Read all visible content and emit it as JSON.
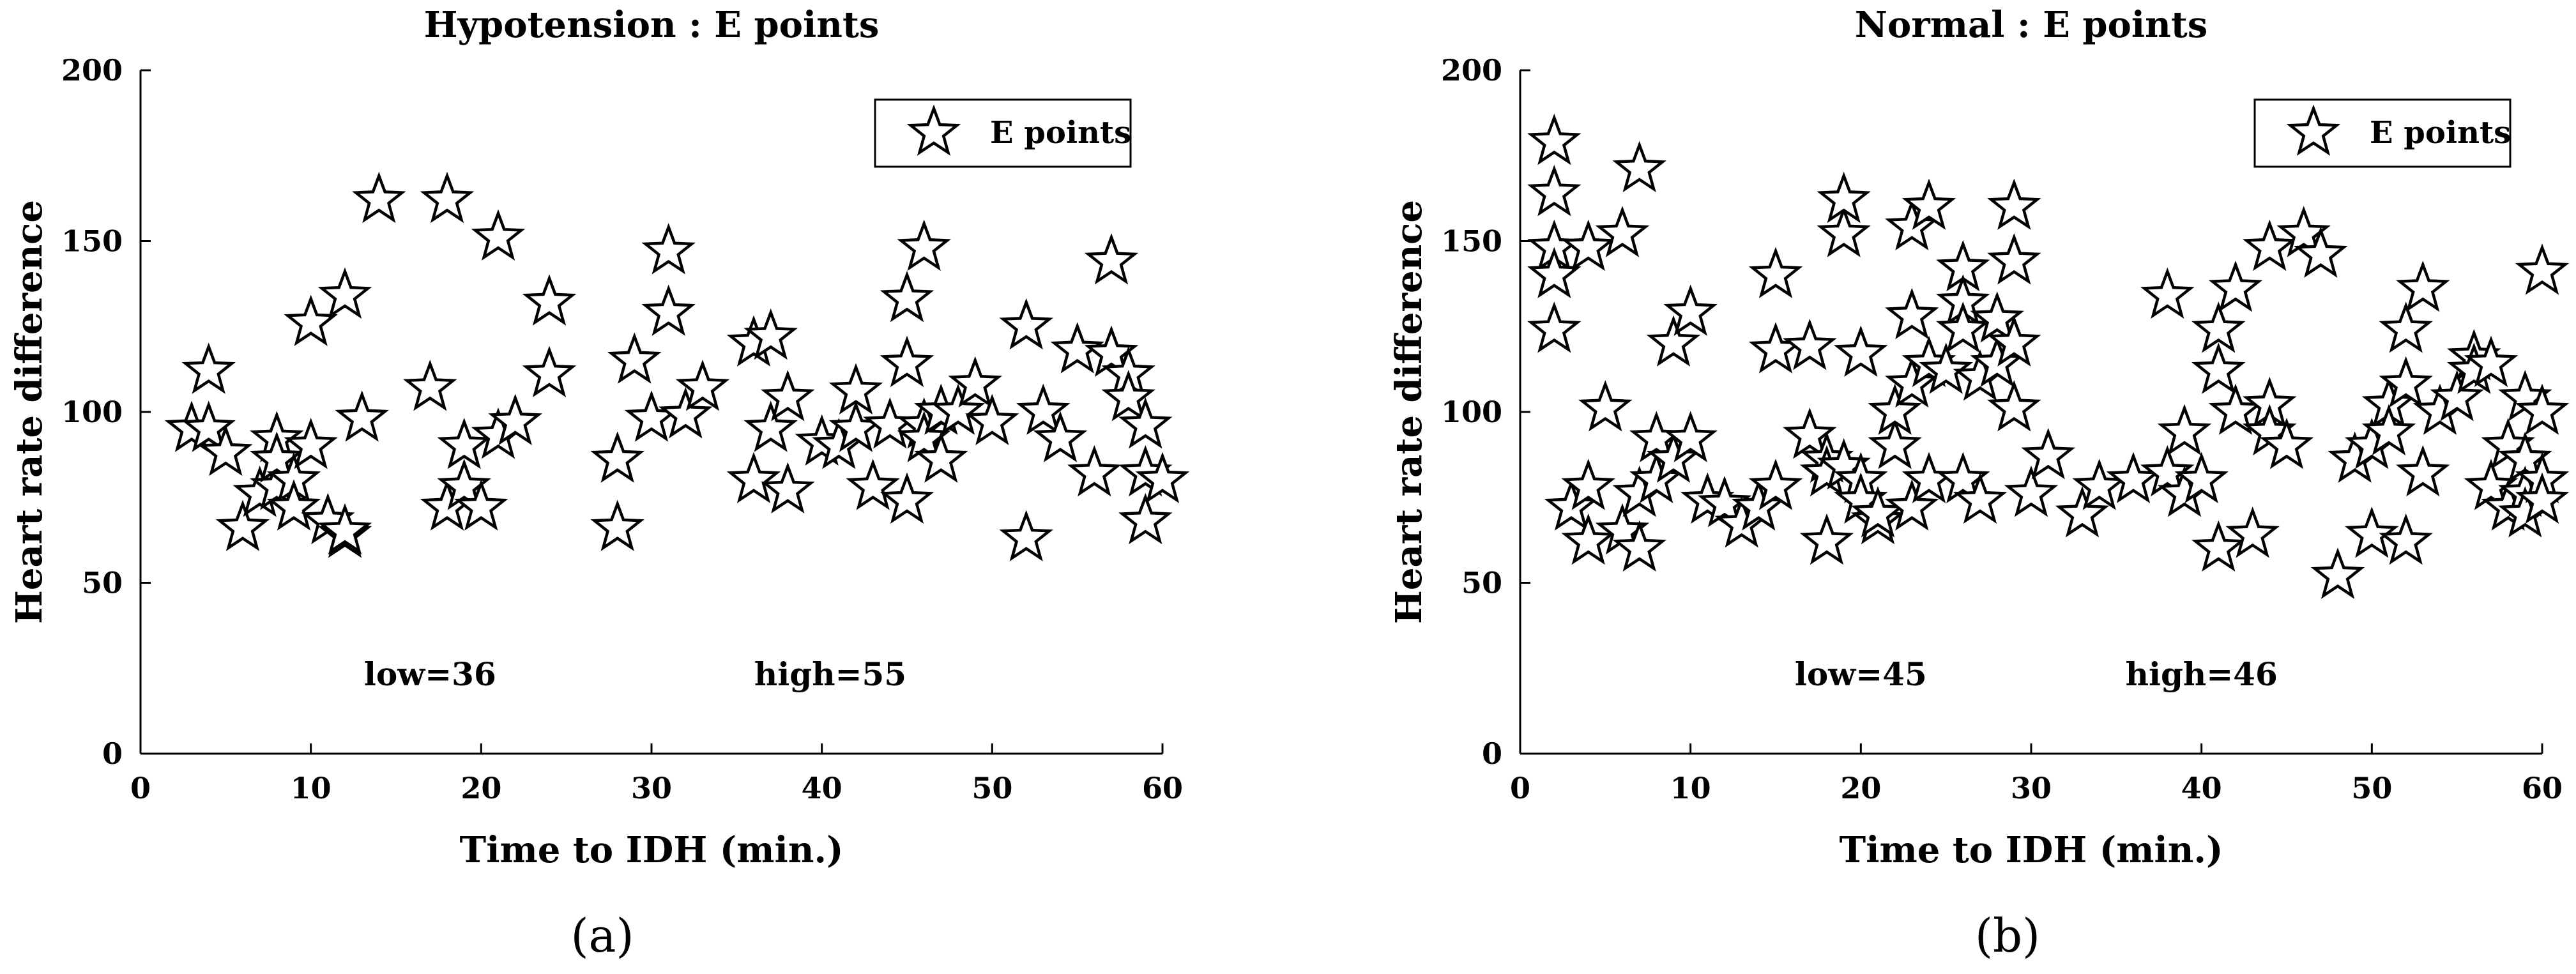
{
  "chart_data": [
    {
      "type": "scatter",
      "title": "Hypotension : E points",
      "xlabel": "Time to IDH (min.)",
      "ylabel": "Heart rate difference",
      "xlim": [
        0,
        60
      ],
      "ylim": [
        0,
        200
      ],
      "xticks": [
        "0",
        "10",
        "20",
        "30",
        "40",
        "50",
        "60"
      ],
      "yticks": [
        "0",
        "50",
        "100",
        "150",
        "200"
      ],
      "grid": false,
      "legend_position": "top-right",
      "marker": "open-star",
      "caption": "(a)",
      "annotations": [
        {
          "text": "low=36",
          "x": 17,
          "y": 20
        },
        {
          "text": "high=55",
          "x": 40.5,
          "y": 20
        }
      ],
      "series": [
        {
          "name": "E points",
          "points": [
            [
              3,
              95
            ],
            [
              4,
              112
            ],
            [
              4,
              95
            ],
            [
              5,
              88
            ],
            [
              6,
              66
            ],
            [
              7,
              76
            ],
            [
              8,
              92
            ],
            [
              8,
              78
            ],
            [
              8,
              86
            ],
            [
              9,
              80
            ],
            [
              9,
              72
            ],
            [
              10,
              90
            ],
            [
              10,
              126
            ],
            [
              11,
              68
            ],
            [
              12,
              134
            ],
            [
              12,
              64
            ],
            [
              12,
              65
            ],
            [
              13,
              98
            ],
            [
              14,
              162
            ],
            [
              17,
              107
            ],
            [
              18,
              162
            ],
            [
              18,
              72
            ],
            [
              19,
              90
            ],
            [
              19,
              78
            ],
            [
              20,
              72
            ],
            [
              21,
              151
            ],
            [
              21,
              93
            ],
            [
              22,
              97
            ],
            [
              24,
              132
            ],
            [
              24,
              111
            ],
            [
              28,
              66
            ],
            [
              28,
              86
            ],
            [
              29,
              115
            ],
            [
              30,
              98
            ],
            [
              31,
              147
            ],
            [
              31,
              129
            ],
            [
              32,
              99
            ],
            [
              33,
              107
            ],
            [
              36,
              120
            ],
            [
              36,
              80
            ],
            [
              37,
              122
            ],
            [
              37,
              95
            ],
            [
              38,
              104
            ],
            [
              38,
              77
            ],
            [
              40,
              91
            ],
            [
              41,
              90
            ],
            [
              42,
              106
            ],
            [
              42,
              95
            ],
            [
              43,
              78
            ],
            [
              44,
              96
            ],
            [
              45,
              74
            ],
            [
              45,
              133
            ],
            [
              45,
              114
            ],
            [
              46,
              148
            ],
            [
              46,
              96
            ],
            [
              46,
              92
            ],
            [
              47,
              100
            ],
            [
              47,
              86
            ],
            [
              48,
              100
            ],
            [
              49,
              108
            ],
            [
              50,
              97
            ],
            [
              52,
              125
            ],
            [
              52,
              63
            ],
            [
              53,
              100
            ],
            [
              54,
              92
            ],
            [
              55,
              118
            ],
            [
              56,
              82
            ],
            [
              57,
              144
            ],
            [
              57,
              117
            ],
            [
              58,
              111
            ],
            [
              58,
              104
            ],
            [
              59,
              96
            ],
            [
              59,
              68
            ],
            [
              59,
              82
            ],
            [
              60,
              80
            ]
          ]
        }
      ]
    },
    {
      "type": "scatter",
      "title": "Normal : E points",
      "xlabel": "Time to IDH (min.)",
      "ylabel": "Heart rate difference",
      "xlim": [
        0,
        60
      ],
      "ylim": [
        0,
        200
      ],
      "xticks": [
        "0",
        "10",
        "20",
        "30",
        "40",
        "50",
        "60"
      ],
      "yticks": [
        "0",
        "50",
        "100",
        "150",
        "200"
      ],
      "grid": false,
      "legend_position": "top-right",
      "marker": "open-star",
      "caption": "(b)",
      "annotations": [
        {
          "text": "low=45",
          "x": 20,
          "y": 20
        },
        {
          "text": "high=46",
          "x": 40,
          "y": 20
        }
      ],
      "series": [
        {
          "name": "E points",
          "points": [
            [
              2,
              179
            ],
            [
              2,
              164
            ],
            [
              2,
              148
            ],
            [
              2,
              140
            ],
            [
              2,
              124
            ],
            [
              3,
              72
            ],
            [
              4,
              78
            ],
            [
              4,
              62
            ],
            [
              4,
              148
            ],
            [
              5,
              101
            ],
            [
              6,
              152
            ],
            [
              6,
              65
            ],
            [
              7,
              171
            ],
            [
              7,
              60
            ],
            [
              7,
              76
            ],
            [
              8,
              92
            ],
            [
              8,
              80
            ],
            [
              9,
              86
            ],
            [
              9,
              120
            ],
            [
              10,
              129
            ],
            [
              10,
              92
            ],
            [
              11,
              74
            ],
            [
              12,
              73
            ],
            [
              13,
              67
            ],
            [
              14,
              72
            ],
            [
              15,
              140
            ],
            [
              15,
              118
            ],
            [
              15,
              78
            ],
            [
              17,
              93
            ],
            [
              17,
              119
            ],
            [
              18,
              86
            ],
            [
              18,
              82
            ],
            [
              18,
              62
            ],
            [
              19,
              152
            ],
            [
              19,
              162
            ],
            [
              19,
              84
            ],
            [
              20,
              80
            ],
            [
              20,
              74
            ],
            [
              20,
              117
            ],
            [
              21,
              68
            ],
            [
              21,
              70
            ],
            [
              22,
              90
            ],
            [
              22,
              100
            ],
            [
              23,
              154
            ],
            [
              23,
              128
            ],
            [
              23,
              108
            ],
            [
              23,
              72
            ],
            [
              24,
              160
            ],
            [
              24,
              114
            ],
            [
              24,
              80
            ],
            [
              25,
              112
            ],
            [
              26,
              142
            ],
            [
              26,
              132
            ],
            [
              26,
              124
            ],
            [
              26,
              80
            ],
            [
              27,
              110
            ],
            [
              27,
              74
            ],
            [
              28,
              127
            ],
            [
              28,
              114
            ],
            [
              29,
              160
            ],
            [
              29,
              144
            ],
            [
              29,
              120
            ],
            [
              29,
              101
            ],
            [
              30,
              76
            ],
            [
              31,
              87
            ],
            [
              33,
              70
            ],
            [
              34,
              78
            ],
            [
              36,
              80
            ],
            [
              38,
              134
            ],
            [
              38,
              82
            ],
            [
              39,
              94
            ],
            [
              39,
              76
            ],
            [
              40,
              80
            ],
            [
              41,
              124
            ],
            [
              41,
              112
            ],
            [
              41,
              60
            ],
            [
              42,
              100
            ],
            [
              42,
              136
            ],
            [
              43,
              64
            ],
            [
              44,
              148
            ],
            [
              44,
              102
            ],
            [
              44,
              94
            ],
            [
              45,
              90
            ],
            [
              46,
              152
            ],
            [
              47,
              146
            ],
            [
              48,
              52
            ],
            [
              49,
              86
            ],
            [
              50,
              90
            ],
            [
              50,
              64
            ],
            [
              51,
              102
            ],
            [
              51,
              94
            ],
            [
              52,
              124
            ],
            [
              52,
              108
            ],
            [
              52,
              62
            ],
            [
              53,
              136
            ],
            [
              53,
              82
            ],
            [
              54,
              100
            ],
            [
              55,
              104
            ],
            [
              56,
              116
            ],
            [
              56,
              112
            ],
            [
              57,
              114
            ],
            [
              57,
              78
            ],
            [
              58,
              72
            ],
            [
              58,
              90
            ],
            [
              59,
              104
            ],
            [
              59,
              86
            ],
            [
              59,
              76
            ],
            [
              59,
              70
            ],
            [
              60,
              141
            ],
            [
              60,
              100
            ],
            [
              60,
              80
            ],
            [
              60,
              74
            ]
          ]
        }
      ]
    }
  ]
}
